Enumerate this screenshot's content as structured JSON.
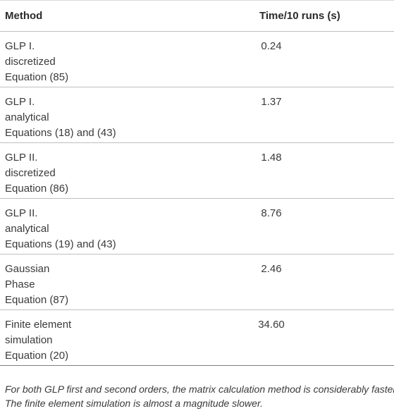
{
  "table": {
    "headers": {
      "method": "Method",
      "time": "Time/10 runs (s)"
    },
    "rows": [
      {
        "method_lines": [
          "GLP I.",
          "discretized",
          "Equation (85)"
        ],
        "time": "0.24"
      },
      {
        "method_lines": [
          "GLP I.",
          "analytical",
          "Equations (18) and (43)"
        ],
        "time": "1.37"
      },
      {
        "method_lines": [
          "GLP II.",
          "discretized",
          "Equation (86)"
        ],
        "time": "1.48"
      },
      {
        "method_lines": [
          "GLP II.",
          "analytical",
          "Equations (19) and (43)"
        ],
        "time": "8.76"
      },
      {
        "method_lines": [
          "Gaussian",
          "Phase",
          "Equation (87)"
        ],
        "time": "2.46"
      },
      {
        "method_lines": [
          "Finite element",
          "simulation",
          "Equation (20)"
        ],
        "time": "34.60"
      }
    ]
  },
  "footnote": {
    "line1": "For both GLP first and second orders, the matrix calculation method is considerably faster.",
    "line2": "The finite element simulation is almost a magnitude slower."
  }
}
